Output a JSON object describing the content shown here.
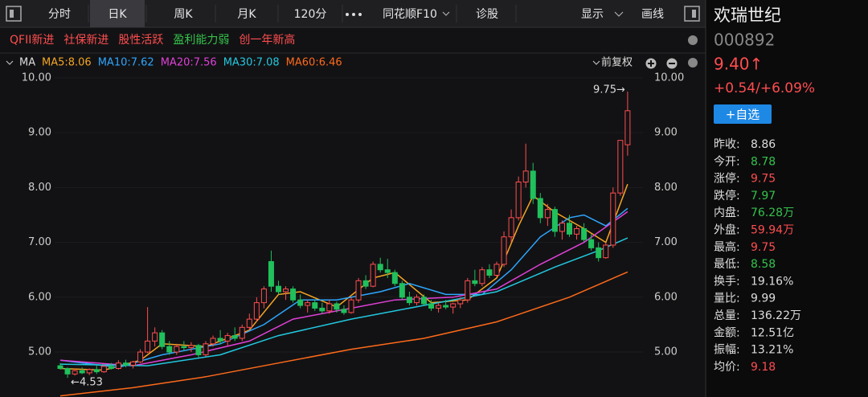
{
  "toolbar": {
    "tabs": [
      "分时",
      "日K",
      "周K",
      "月K",
      "120分",
      "同花顺F10",
      "诊股",
      "显示",
      "画线"
    ],
    "selected": 1
  },
  "tags": [
    {
      "text": "QFII新进",
      "color": "#ff4d4f"
    },
    {
      "text": "社保新进",
      "color": "#ff4d4f"
    },
    {
      "text": "股性活跃",
      "color": "#ff4d4f"
    },
    {
      "text": "盈利能力弱",
      "color": "#35c24b"
    },
    {
      "text": "创一年新高",
      "color": "#ff4d4f"
    }
  ],
  "ma_label": "MA",
  "adjust": "前复权",
  "quote": {
    "name": "欢瑞世纪",
    "code": "000892",
    "price": "9.40↑",
    "change": "+0.54/+6.09%",
    "button": "+自选",
    "rows": [
      {
        "label": "昨收:",
        "value": "8.86",
        "color": "#dddddd"
      },
      {
        "label": "今开:",
        "value": "8.78",
        "color": "#35c24b"
      },
      {
        "label": "涨停:",
        "value": "9.75",
        "color": "#ff4d4f"
      },
      {
        "label": "跌停:",
        "value": "7.97",
        "color": "#35c24b"
      },
      {
        "label": "内盘:",
        "value": "76.28万",
        "color": "#35c24b"
      },
      {
        "label": "外盘:",
        "value": "59.94万",
        "color": "#ff4d4f"
      },
      {
        "label": "最高:",
        "value": "9.75",
        "color": "#ff4d4f"
      },
      {
        "label": "最低:",
        "value": "8.58",
        "color": "#35c24b"
      },
      {
        "label": "换手:",
        "value": "19.16%",
        "color": "#dddddd"
      },
      {
        "label": "量比:",
        "value": "9.99",
        "color": "#dddddd"
      },
      {
        "label": "总量:",
        "value": "136.22万",
        "color": "#dddddd"
      },
      {
        "label": "金额:",
        "value": "12.51亿",
        "color": "#dddddd"
      },
      {
        "label": "振幅:",
        "value": "13.21%",
        "color": "#dddddd"
      },
      {
        "label": "均价:",
        "value": "9.18",
        "color": "#ff4d4f"
      }
    ]
  },
  "chart_data": {
    "type": "candlestick",
    "up_color": "#ff4d4f",
    "down_color": "#20c05c",
    "ylim": [
      4.18,
      10.13
    ],
    "yticks": [
      {
        "value": 5,
        "label": "5.00"
      },
      {
        "value": 6,
        "label": "6.00"
      },
      {
        "value": 7,
        "label": "7.00"
      },
      {
        "value": 8,
        "label": "8.00"
      },
      {
        "value": 9,
        "label": "9.00"
      },
      {
        "value": 10,
        "label": "10.00"
      }
    ],
    "annotations": [
      {
        "text": "9.75→",
        "value": 9.75
      },
      {
        "text": "←4.53",
        "value": 4.53
      }
    ],
    "open": [
      4.75,
      4.7,
      4.6,
      4.66,
      4.62,
      4.68,
      4.64,
      4.74,
      4.7,
      4.8,
      4.76,
      4.82,
      5.0,
      5.2,
      5.35,
      5.1,
      5.0,
      5.1,
      5.08,
      5.12,
      4.95,
      5.15,
      5.25,
      5.2,
      5.3,
      5.25,
      5.45,
      5.6,
      5.9,
      6.65,
      6.2,
      6.1,
      6.15,
      5.95,
      5.85,
      5.9,
      5.8,
      5.75,
      5.88,
      5.78,
      5.72,
      5.95,
      6.3,
      6.2,
      6.6,
      6.5,
      6.45,
      6.25,
      6.0,
      5.9,
      6.0,
      5.88,
      5.8,
      5.85,
      5.82,
      5.88,
      5.95,
      6.3,
      6.25,
      6.5,
      6.4,
      6.6,
      7.1,
      7.45,
      8.1,
      8.3,
      7.8,
      7.45,
      7.6,
      7.2,
      7.35,
      7.15,
      7.25,
      7.05,
      6.9,
      6.72,
      6.95,
      7.9,
      8.78
    ],
    "high": [
      4.8,
      4.72,
      4.7,
      4.72,
      4.7,
      4.75,
      4.78,
      4.8,
      4.85,
      4.86,
      4.84,
      5.05,
      5.82,
      5.45,
      5.4,
      5.2,
      5.15,
      5.2,
      5.18,
      5.15,
      5.2,
      5.3,
      5.4,
      5.35,
      5.45,
      5.5,
      5.7,
      6.0,
      6.2,
      6.85,
      6.3,
      6.2,
      6.2,
      6.05,
      5.95,
      5.95,
      5.9,
      5.95,
      5.92,
      5.85,
      6.0,
      6.35,
      6.4,
      6.65,
      6.72,
      6.7,
      6.5,
      6.3,
      6.1,
      6.05,
      6.05,
      5.95,
      5.9,
      5.95,
      5.9,
      6.0,
      6.35,
      6.5,
      6.55,
      6.6,
      6.65,
      7.2,
      7.6,
      8.2,
      8.8,
      8.45,
      7.9,
      7.7,
      7.65,
      7.4,
      7.5,
      7.3,
      7.35,
      7.15,
      7.0,
      7.0,
      8.0,
      8.86,
      9.75
    ],
    "low": [
      4.68,
      4.53,
      4.57,
      4.6,
      4.58,
      4.6,
      4.62,
      4.68,
      4.68,
      4.72,
      4.7,
      4.8,
      4.98,
      5.1,
      5.05,
      4.95,
      4.95,
      5.02,
      5.0,
      4.9,
      4.92,
      5.1,
      5.15,
      5.12,
      5.2,
      5.2,
      5.4,
      5.55,
      5.8,
      6.1,
      6.05,
      5.95,
      5.9,
      5.8,
      5.72,
      5.75,
      5.7,
      5.7,
      5.72,
      5.68,
      5.7,
      5.9,
      6.15,
      6.18,
      6.45,
      6.35,
      6.2,
      5.95,
      5.85,
      5.85,
      5.85,
      5.75,
      5.72,
      5.78,
      5.7,
      5.8,
      5.9,
      6.2,
      6.2,
      6.35,
      6.38,
      6.55,
      7.0,
      7.4,
      8.0,
      7.7,
      7.35,
      7.3,
      7.1,
      7.05,
      7.1,
      7.05,
      7.0,
      6.85,
      6.65,
      6.7,
      6.9,
      7.85,
      8.58
    ],
    "close": [
      4.7,
      4.6,
      4.66,
      4.62,
      4.68,
      4.64,
      4.74,
      4.7,
      4.8,
      4.76,
      4.82,
      5.0,
      5.2,
      5.35,
      5.1,
      5.0,
      5.1,
      5.08,
      5.12,
      4.95,
      5.15,
      5.25,
      5.2,
      5.3,
      5.25,
      5.45,
      5.6,
      5.9,
      6.15,
      6.2,
      6.1,
      6.15,
      5.95,
      5.85,
      5.9,
      5.8,
      5.75,
      5.88,
      5.78,
      5.72,
      5.95,
      6.3,
      6.2,
      6.6,
      6.5,
      6.45,
      6.25,
      6.0,
      5.9,
      6.0,
      5.88,
      5.8,
      5.85,
      5.82,
      5.88,
      5.95,
      6.3,
      6.25,
      6.5,
      6.4,
      6.6,
      7.1,
      7.45,
      8.1,
      8.3,
      7.8,
      7.45,
      7.6,
      7.2,
      7.35,
      7.15,
      7.25,
      7.05,
      6.9,
      6.72,
      6.95,
      7.9,
      8.86,
      9.4
    ],
    "series": [
      {
        "name": "MA5:8.06",
        "color": "#f5a623",
        "x": [
          0,
          6,
          11,
          14,
          20,
          26,
          30,
          33,
          38,
          43,
          46,
          51,
          56,
          60,
          63,
          65,
          68,
          72,
          75,
          78
        ],
        "values": [
          4.7,
          4.67,
          4.85,
          5.15,
          5.1,
          5.4,
          6.05,
          6.1,
          5.82,
          6.35,
          6.45,
          5.9,
          5.95,
          6.35,
          7.3,
          7.85,
          7.55,
          7.25,
          7.0,
          8.06
        ]
      },
      {
        "name": "MA10:7.62",
        "color": "#2ea7ff",
        "x": [
          0,
          8,
          14,
          22,
          28,
          33,
          38,
          44,
          48,
          53,
          58,
          62,
          66,
          70,
          72,
          75,
          78
        ],
        "values": [
          4.85,
          4.72,
          4.95,
          5.15,
          5.5,
          5.95,
          5.95,
          6.1,
          6.25,
          6.05,
          6.05,
          6.5,
          7.1,
          7.45,
          7.5,
          7.3,
          7.62
        ]
      },
      {
        "name": "MA20:7.56",
        "color": "#e040d8",
        "x": [
          0,
          10,
          18,
          26,
          32,
          40,
          46,
          54,
          60,
          66,
          72,
          78
        ],
        "values": [
          4.85,
          4.75,
          4.95,
          5.2,
          5.6,
          5.8,
          5.95,
          6.0,
          6.15,
          6.6,
          7.0,
          7.56
        ]
      },
      {
        "name": "MA30:7.08",
        "color": "#22c8e0",
        "x": [
          0,
          12,
          22,
          30,
          40,
          50,
          60,
          68,
          74,
          78
        ],
        "values": [
          4.78,
          4.75,
          4.95,
          5.3,
          5.6,
          5.85,
          6.1,
          6.55,
          6.85,
          7.08
        ]
      },
      {
        "name": "MA60:6.46",
        "color": "#ff6a1a",
        "x": [
          0,
          10,
          20,
          30,
          40,
          50,
          60,
          70,
          78
        ],
        "values": [
          4.2,
          4.35,
          4.55,
          4.8,
          5.05,
          5.25,
          5.55,
          6.0,
          6.46
        ]
      }
    ]
  }
}
